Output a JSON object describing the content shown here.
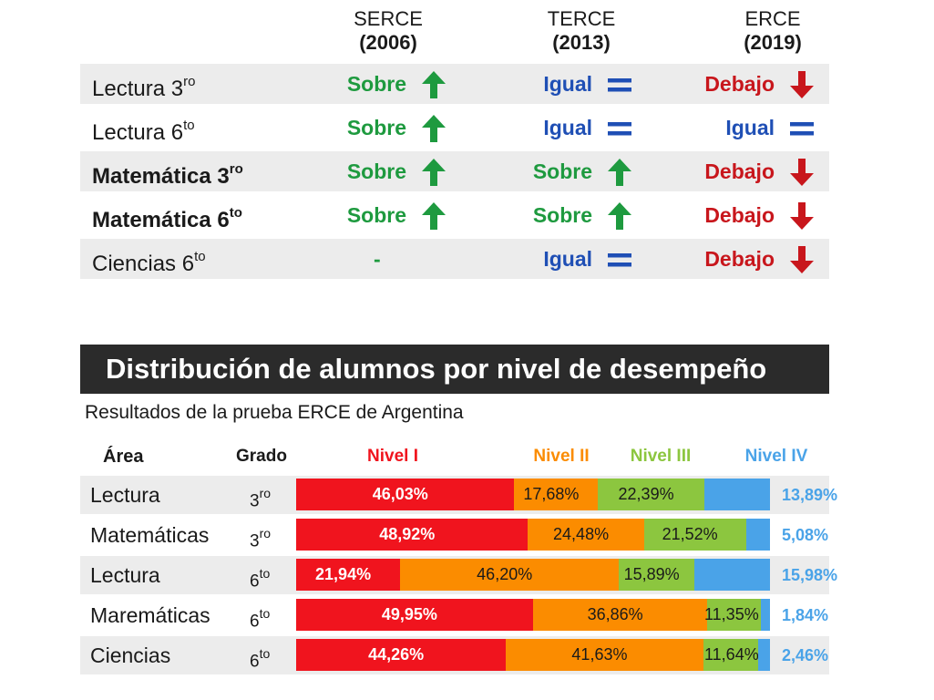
{
  "comparison": {
    "columns": [
      {
        "name": "SERCE",
        "year": "(2006)"
      },
      {
        "name": "TERCE",
        "year": "(2013)"
      },
      {
        "name": "ERCE",
        "year": "(2019)"
      }
    ],
    "rows": [
      {
        "area": "Lectura 3",
        "sup": "ro",
        "bold": false,
        "values": [
          "Sobre",
          "Igual",
          "Debajo"
        ]
      },
      {
        "area": "Lectura 6",
        "sup": "to",
        "bold": false,
        "values": [
          "Sobre",
          "Igual",
          "Igual"
        ]
      },
      {
        "area": "Matemática 3",
        "sup": "ro",
        "bold": true,
        "values": [
          "Sobre",
          "Sobre",
          "Debajo"
        ]
      },
      {
        "area": "Matemática 6",
        "sup": "to",
        "bold": true,
        "values": [
          "Sobre",
          "Sobre",
          "Debajo"
        ]
      },
      {
        "area": "Ciencias 6",
        "sup": "to",
        "bold": false,
        "values": [
          "-",
          "Igual",
          "Debajo"
        ]
      }
    ]
  },
  "banner": {
    "title": "Distribución de alumnos por nivel de desempeño"
  },
  "subtitle": "Resultados de la prueba ERCE de Argentina",
  "chart_data": {
    "type": "bar",
    "stacked": true,
    "orientation": "horizontal",
    "headers": {
      "area": "Área",
      "grado": "Grado"
    },
    "series": [
      {
        "name": "Nivel I",
        "color": "#f0141e"
      },
      {
        "name": "Nivel II",
        "color": "#fb8c00"
      },
      {
        "name": "Nivel III",
        "color": "#8cc63f"
      },
      {
        "name": "Nivel IV",
        "color": "#4aa3e8"
      }
    ],
    "rows": [
      {
        "area": "Lectura",
        "grado": "3",
        "grado_sup": "ro",
        "values": [
          46.03,
          17.68,
          22.39,
          13.89
        ],
        "labels": [
          "46,03%",
          "17,68%",
          "22,39%",
          "13,89%"
        ]
      },
      {
        "area": "Matemáticas",
        "grado": "3",
        "grado_sup": "ro",
        "values": [
          48.92,
          24.48,
          21.52,
          5.08
        ],
        "labels": [
          "48,92%",
          "24,48%",
          "21,52%",
          "5,08%"
        ]
      },
      {
        "area": "Lectura",
        "grado": "6",
        "grado_sup": "to",
        "values": [
          21.94,
          46.2,
          15.89,
          15.98
        ],
        "labels": [
          "21,94%",
          "46,20%",
          "15,89%",
          "15,98%"
        ]
      },
      {
        "area": "Maremáticas",
        "grado": "6",
        "grado_sup": "to",
        "values": [
          49.95,
          36.86,
          11.35,
          1.84
        ],
        "labels": [
          "49,95%",
          "36,86%",
          "11,35%",
          "1,84%"
        ]
      },
      {
        "area": "Ciencias",
        "grado": "6",
        "grado_sup": "to",
        "values": [
          44.26,
          41.63,
          11.64,
          2.46
        ],
        "labels": [
          "44,26%",
          "41,63%",
          "11,64%",
          "2,46%"
        ]
      }
    ]
  }
}
